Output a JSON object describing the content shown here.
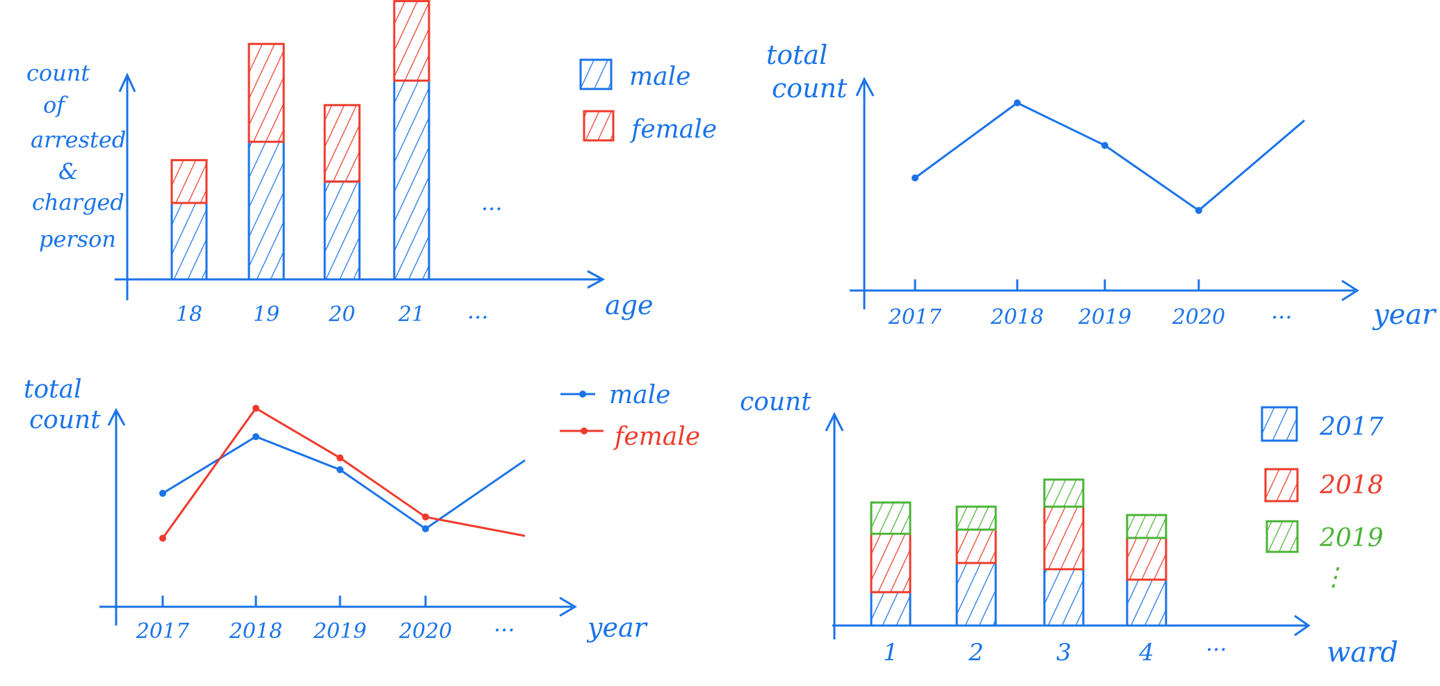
{
  "colors": {
    "blue": "#1a73e8",
    "red": "#ee3a2b",
    "green": "#49b335",
    "background": "#ffffff"
  },
  "chart_data": [
    {
      "id": "age_stacked",
      "type": "bar",
      "stacked": true,
      "ylabel_lines": [
        "count",
        "of",
        "arrested",
        "&",
        "charged",
        "person"
      ],
      "xlabel": "age",
      "categories": [
        "18",
        "19",
        "20",
        "21"
      ],
      "continuation": "...",
      "series": [
        {
          "name": "male",
          "color": "#1a73e8",
          "values": [
            2.5,
            4.5,
            3.2,
            6.5
          ]
        },
        {
          "name": "female",
          "color": "#ee3a2b",
          "values": [
            1.4,
            3.2,
            2.5,
            2.6
          ]
        }
      ],
      "ylim": [
        0,
        10
      ],
      "legend": "top-right",
      "grid": false
    },
    {
      "id": "total_line",
      "type": "line",
      "ylabel_lines": [
        "total",
        "count"
      ],
      "xlabel": "year",
      "categories": [
        "2017",
        "2018",
        "2019",
        "2020"
      ],
      "continuation": "...",
      "series": [
        {
          "color": "#1a73e8",
          "values": [
            4.5,
            7.5,
            5.8,
            3.2
          ],
          "trailing_end": 6.8
        }
      ],
      "ylim": [
        0,
        10
      ],
      "grid": false
    },
    {
      "id": "gender_line",
      "type": "line",
      "ylabel_lines": [
        "total",
        "count"
      ],
      "xlabel": "year",
      "categories": [
        "2017",
        "2018",
        "2019",
        "2020"
      ],
      "continuation": "...",
      "series": [
        {
          "name": "male",
          "color": "#1a73e8",
          "values": [
            4.8,
            7.2,
            5.8,
            3.3
          ],
          "trailing_end": 6.2
        },
        {
          "name": "female",
          "color": "#ee3a2b",
          "values": [
            2.9,
            8.4,
            6.3,
            3.8
          ],
          "trailing_end": 3.0
        }
      ],
      "ylim": [
        0,
        10
      ],
      "legend": "top-right",
      "grid": false
    },
    {
      "id": "ward_stacked",
      "type": "bar",
      "stacked": true,
      "ylabel_lines": [
        "count"
      ],
      "xlabel": "ward",
      "categories": [
        "1",
        "2",
        "3",
        "4"
      ],
      "continuation": "...",
      "series": [
        {
          "name": "2017",
          "color": "#1a73e8",
          "values": [
            1.6,
            3.0,
            2.7,
            2.2
          ]
        },
        {
          "name": "2018",
          "color": "#ee3a2b",
          "values": [
            2.8,
            1.6,
            3.0,
            2.0
          ]
        },
        {
          "name": "2019",
          "color": "#49b335",
          "values": [
            1.5,
            1.1,
            1.3,
            1.1
          ]
        }
      ],
      "legend_more": "⋮",
      "ylim": [
        0,
        10
      ],
      "legend": "top-right",
      "grid": false
    }
  ]
}
